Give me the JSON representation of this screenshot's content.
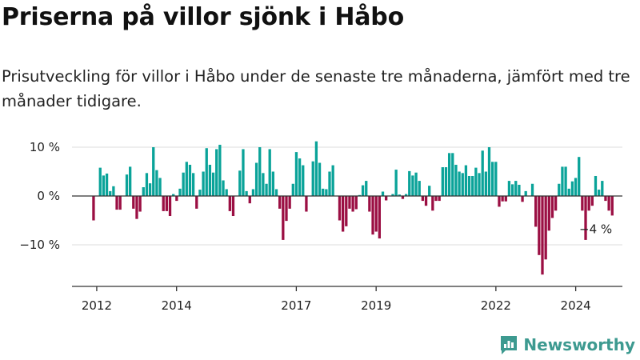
{
  "header": {
    "title": "Priserna på villor sjönk i Håbo",
    "subtitle": "Prisutveckling för villor i Håbo under de senaste tre månaderna, jämfört med tre månader tidigare."
  },
  "brand": {
    "name": "Newsworthy",
    "icon": "bar-chart-logo-icon"
  },
  "colors": {
    "positive": "#0aa399",
    "negative": "#9b0f43",
    "grid": "#dddddd",
    "axis": "#333333"
  },
  "chart_data": {
    "type": "bar",
    "title": "Priserna på villor sjönk i Håbo",
    "xlabel": "",
    "ylabel": "",
    "ylim": [
      -18,
      12
    ],
    "xlim": [
      2011.38,
      2025.17
    ],
    "grid": true,
    "y_ticks": [
      {
        "value": 10,
        "label": "10 %"
      },
      {
        "value": 0,
        "label": "0 %"
      },
      {
        "value": -10,
        "label": "−10 %"
      }
    ],
    "x_ticks": [
      {
        "value": 2012,
        "label": "2012"
      },
      {
        "value": 2014,
        "label": "2014"
      },
      {
        "value": 2017,
        "label": "2017"
      },
      {
        "value": 2019,
        "label": "2019"
      },
      {
        "value": 2022,
        "label": "2022"
      },
      {
        "value": 2024,
        "label": "2024"
      }
    ],
    "start": 2011.92,
    "step": 0.0833,
    "values": [
      -5,
      0,
      5.8,
      4.2,
      4.6,
      1,
      2,
      -2.8,
      -2.8,
      0,
      4.4,
      6,
      -2.6,
      -4.7,
      -3.2,
      1.8,
      4.7,
      2.6,
      10,
      5.3,
      3.7,
      -3.1,
      -3.1,
      -4.1,
      0.4,
      -1,
      1.5,
      4.8,
      7,
      6.4,
      4.7,
      -2.6,
      1.3,
      5,
      9.8,
      6.4,
      4.8,
      9.6,
      10.5,
      3.2,
      1.4,
      -3.1,
      -4.1,
      0,
      5.2,
      9.6,
      1,
      -1.5,
      1.4,
      6.8,
      10,
      4.7,
      2.5,
      9.6,
      5,
      1.4,
      -2.6,
      -9,
      -5.1,
      -2.6,
      2.5,
      9,
      7.7,
      6.3,
      -3.2,
      0,
      7.1,
      11.2,
      6.8,
      1.5,
      1.4,
      5,
      6.3,
      0,
      -5,
      -7.3,
      -6.2,
      -2.6,
      -3.2,
      -2.7,
      0.2,
      2.2,
      3.1,
      -3.2,
      -7.9,
      -7.3,
      -8.7,
      0.9,
      -0.9,
      0,
      0.4,
      5.4,
      0.3,
      -0.6,
      0.4,
      5.1,
      4.2,
      4.8,
      3.1,
      -1,
      -2,
      2.1,
      -3,
      -1,
      -1,
      5.9,
      5.9,
      8.8,
      8.8,
      6.4,
      5,
      4.7,
      6.3,
      4.1,
      4.1,
      5.8,
      4.7,
      9.3,
      5,
      10,
      7,
      7,
      -2.2,
      -1.1,
      -1.1,
      3.1,
      2.4,
      3.1,
      2.3,
      -1.2,
      1,
      0,
      2.5,
      -6.3,
      -12.1,
      -16.1,
      -13,
      -7.1,
      -4.5,
      -3,
      2.5,
      6,
      6,
      1.5,
      3,
      3.7,
      8,
      -3,
      -9,
      -3,
      -2,
      4.1,
      1.3,
      3.1,
      -1,
      -3,
      -4
    ]
  }
}
